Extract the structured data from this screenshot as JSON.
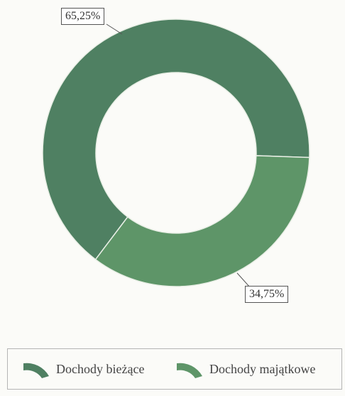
{
  "chart_data": {
    "type": "pie",
    "donut": true,
    "categories": [
      "Dochody bieżące",
      "Dochody majątkowe"
    ],
    "values": [
      65.25,
      34.75
    ],
    "data_labels": [
      "65,25%",
      "34,75%"
    ],
    "colors": [
      "#4f8062",
      "#5e9568"
    ],
    "legend_position": "bottom"
  }
}
